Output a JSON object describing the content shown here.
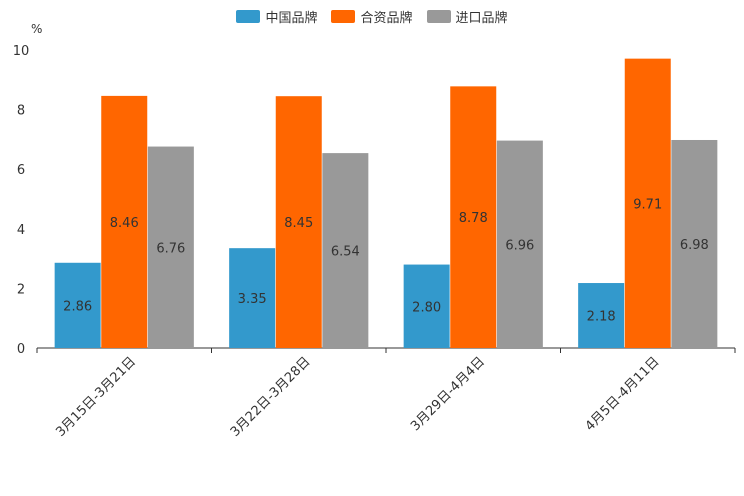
{
  "chart_data": {
    "type": "bar",
    "unit": "%",
    "categories": [
      "3月15日-3月21日",
      "3月22日-3月28日",
      "3月29日-4月4日",
      "4月5日-4月11日"
    ],
    "series": [
      {
        "name": "中国品牌",
        "color": "#3399cc",
        "values": [
          2.86,
          3.35,
          2.8,
          2.18
        ],
        "labels": [
          "2.86",
          "3.35",
          "2.80",
          "2.18"
        ]
      },
      {
        "name": "合资品牌",
        "color": "#ff6600",
        "values": [
          8.46,
          8.45,
          8.78,
          9.71
        ],
        "labels": [
          "8.46",
          "8.45",
          "8.78",
          "9.71"
        ]
      },
      {
        "name": "进口品牌",
        "color": "#999999",
        "values": [
          6.76,
          6.54,
          6.96,
          6.98
        ],
        "labels": [
          "6.76",
          "6.54",
          "6.96",
          "6.98"
        ]
      }
    ],
    "yticks": [
      0,
      2,
      4,
      6,
      8,
      10
    ],
    "ylim": [
      0,
      10
    ],
    "grid": false,
    "legend": "top-center"
  }
}
